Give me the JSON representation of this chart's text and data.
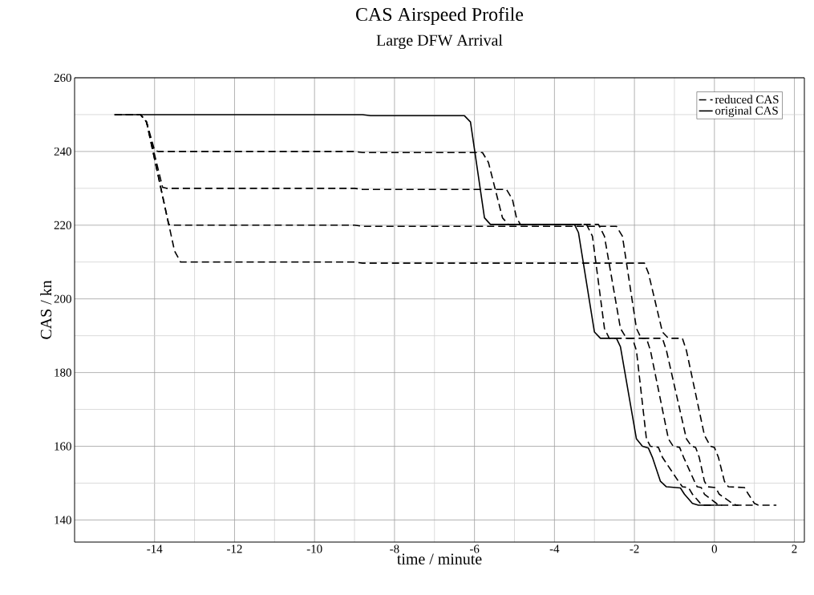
{
  "chart_data": {
    "type": "line",
    "title": "CAS Airspeed Profile",
    "subtitle": "Large DFW Arrival",
    "xlabel": "time / minute",
    "ylabel": "CAS / kn",
    "xlim": [
      -16,
      2.25
    ],
    "ylim": [
      134,
      260
    ],
    "xticks": [
      -14,
      -12,
      -10,
      -8,
      -6,
      -4,
      -2,
      0,
      2
    ],
    "yticks": [
      140,
      160,
      180,
      200,
      220,
      240,
      260
    ],
    "grid": true,
    "legend": "top right",
    "series": [
      {
        "name": "reduced CAS",
        "color": "#000000",
        "line_style": "dashed",
        "x": [
          -15,
          -14.35,
          -14.2,
          -14.0,
          -13.9,
          -9,
          -8.8,
          -5.8,
          -5.65,
          -5.3,
          -5.15,
          -3.2,
          -3.05,
          -2.75,
          -2.63,
          -2.05,
          -1.95,
          -1.7,
          -1.6,
          -1.4,
          -1.3,
          -0.9,
          -0.8,
          -0.65,
          -0.55,
          -0.35,
          -0.3,
          0.2
        ],
        "values": [
          250,
          250,
          248,
          240.3,
          240,
          240,
          239.7,
          239.7,
          237,
          222,
          220.2,
          220.2,
          217,
          192,
          189.3,
          189.3,
          186,
          162,
          160,
          159.7,
          157,
          150.5,
          149,
          148.8,
          147,
          144.5,
          144,
          144
        ]
      },
      {
        "color": "#000000",
        "line_style": "dashed",
        "x": [
          -15,
          -14.35,
          -14.2,
          -13.8,
          -13.7,
          -9,
          -8.8,
          -5.2,
          -5.05,
          -4.95,
          -4.85,
          -2.9,
          -2.75,
          -2.35,
          -2.2,
          -1.7,
          -1.6,
          -1.15,
          -1.03,
          -0.87,
          -0.77,
          -0.5,
          -0.43,
          -0.33,
          -0.25,
          0.05,
          0.1,
          0.6
        ],
        "values": [
          250,
          250,
          248,
          230.3,
          230,
          230,
          229.7,
          229.7,
          227,
          222,
          220.2,
          220.2,
          217,
          192,
          189.3,
          189.3,
          186,
          162,
          160,
          159.7,
          157,
          150.5,
          149,
          148.8,
          147,
          144.5,
          144,
          144
        ]
      },
      {
        "color": "#000000",
        "line_style": "dashed",
        "x": [
          -15,
          -14.35,
          -14.2,
          -13.65,
          -13.55,
          -9,
          -8.8,
          -2.45,
          -2.3,
          -1.95,
          -1.83,
          -1.3,
          -1.2,
          -0.7,
          -0.57,
          -0.47,
          -0.38,
          -0.25,
          -0.17,
          0.03,
          0.12,
          0.45,
          0.55,
          1.05
        ],
        "values": [
          250,
          250,
          248,
          220.3,
          220,
          220,
          219.7,
          219.7,
          217,
          192,
          189.3,
          189.3,
          186,
          162,
          160,
          159.7,
          157,
          150.5,
          149,
          148.8,
          147,
          144.5,
          144,
          144
        ]
      },
      {
        "color": "#000000",
        "line_style": "dashed",
        "x": [
          -15,
          -14.35,
          -14.2,
          -13.5,
          -13.35,
          -9,
          -8.8,
          -1.75,
          -1.65,
          -1.3,
          -1.15,
          -0.8,
          -0.7,
          -0.25,
          -0.1,
          0.0,
          0.1,
          0.25,
          0.35,
          0.75,
          0.85,
          1.0,
          1.1,
          1.55
        ],
        "values": [
          250,
          250,
          248,
          213,
          210,
          210,
          209.7,
          209.7,
          207,
          191,
          189.3,
          189.3,
          186,
          163,
          160,
          159.7,
          157,
          150.5,
          149,
          148.8,
          147,
          144.5,
          144,
          144
        ]
      },
      {
        "name": "original CAS",
        "color": "#000000",
        "line_style": "solid",
        "x": [
          -15,
          -8.8,
          -8.6,
          -6.25,
          -6.1,
          -5.75,
          -5.6,
          -3.5,
          -3.4,
          -3.0,
          -2.85,
          -2.45,
          -2.35,
          -1.95,
          -1.8,
          -1.65,
          -1.55,
          -1.35,
          -1.2,
          -0.85,
          -0.75,
          -0.55,
          -0.4,
          0
        ],
        "values": [
          250,
          250,
          249.7,
          249.7,
          248,
          222,
          220.2,
          220.2,
          218,
          191,
          189.3,
          189.3,
          187,
          162,
          160,
          159.5,
          157,
          150.5,
          149,
          148.7,
          147,
          144.5,
          144,
          144
        ]
      }
    ]
  }
}
